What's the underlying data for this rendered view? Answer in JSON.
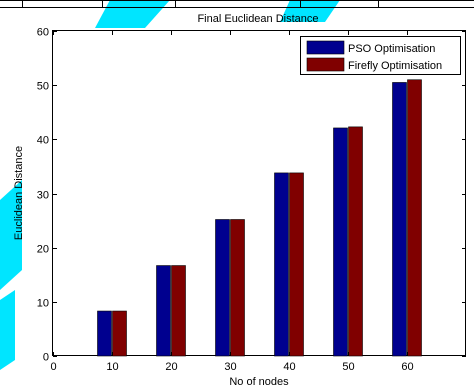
{
  "chart_data": {
    "type": "bar",
    "title": "Final Euclidean Distance",
    "xlabel": "No of nodes",
    "ylabel": "Euclidean Distance",
    "x_ticks": [
      "0",
      "10",
      "20",
      "30",
      "40",
      "50",
      "60"
    ],
    "y_ticks": [
      "0",
      "10",
      "20",
      "30",
      "40",
      "50",
      "60"
    ],
    "xlim": [
      0,
      70
    ],
    "ylim": [
      0,
      60
    ],
    "categories": [
      10,
      20,
      30,
      40,
      50,
      60
    ],
    "series": [
      {
        "name": "PSO Optimisation",
        "color": "#00008f",
        "values": [
          8.3,
          16.7,
          25.2,
          33.8,
          42.1,
          50.5
        ]
      },
      {
        "name": "Firefly Optimisation",
        "color": "#800000",
        "values": [
          8.3,
          16.7,
          25.2,
          33.8,
          42.3,
          51.0
        ]
      }
    ],
    "legend_position": "top-right",
    "grid": false
  },
  "colors": {
    "watermark": "#00e5ff"
  }
}
